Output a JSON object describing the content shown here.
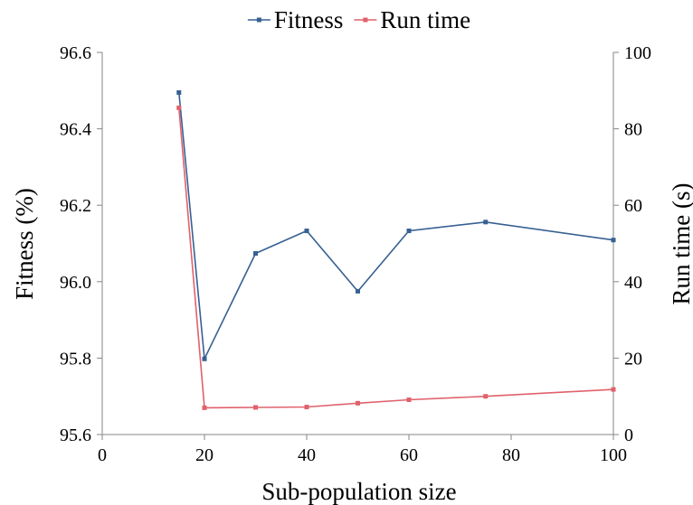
{
  "chart_data": {
    "type": "line",
    "xlabel": "Sub-population size",
    "ylabel_left": "Fitness (%)",
    "ylabel_right": "Run time (s)",
    "xlim": [
      0,
      100
    ],
    "ylim_left": [
      95.6,
      96.6
    ],
    "ylim_right": [
      0,
      100
    ],
    "x_ticks": [
      "0",
      "20",
      "40",
      "60",
      "80",
      "100"
    ],
    "y_left_ticks": [
      "95.6",
      "95.8",
      "96.0",
      "96.2",
      "96.4",
      "96.6"
    ],
    "y_right_ticks": [
      "0",
      "20",
      "40",
      "60",
      "80",
      "100"
    ],
    "grid": false,
    "legend_position": "top",
    "series": [
      {
        "name": "Fitness",
        "axis": "left",
        "color": "#376092",
        "x": [
          15,
          20,
          30,
          40,
          50,
          60,
          75,
          100
        ],
        "y": [
          96.495,
          95.798,
          96.074,
          96.133,
          95.975,
          96.133,
          96.156,
          96.109
        ]
      },
      {
        "name": "Run time",
        "axis": "right",
        "color": "#e0616b",
        "x": [
          15,
          20,
          30,
          40,
          50,
          60,
          75,
          100
        ],
        "y": [
          85.5,
          7.0,
          7.1,
          7.2,
          8.2,
          9.1,
          10.0,
          11.8
        ]
      }
    ]
  }
}
